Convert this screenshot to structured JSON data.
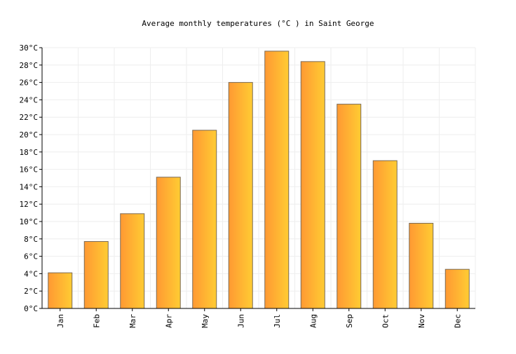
{
  "chart_data": {
    "type": "bar",
    "title": "Average monthly temperatures (°C ) in Saint George",
    "xlabel": "",
    "ylabel": "",
    "categories": [
      "Jan",
      "Feb",
      "Mar",
      "Apr",
      "May",
      "Jun",
      "Jul",
      "Aug",
      "Sep",
      "Oct",
      "Nov",
      "Dec"
    ],
    "values": [
      4.1,
      7.7,
      10.9,
      15.1,
      20.5,
      26.0,
      29.6,
      28.4,
      23.5,
      17.0,
      9.8,
      4.5
    ],
    "ylim": [
      0,
      30
    ],
    "yticks": [
      0,
      2,
      4,
      6,
      8,
      10,
      12,
      14,
      16,
      18,
      20,
      22,
      24,
      26,
      28,
      30
    ],
    "ytick_labels": [
      "0°C",
      "2°C",
      "4°C",
      "6°C",
      "8°C",
      "10°C",
      "12°C",
      "14°C",
      "16°C",
      "18°C",
      "20°C",
      "22°C",
      "24°C",
      "26°C",
      "28°C",
      "30°C"
    ],
    "grid": true,
    "legend": "none",
    "colors": {
      "bar_left": "#ff9933",
      "bar_right": "#ffcc33",
      "bar_stroke": "#7a6a55",
      "grid": "#eeeeee",
      "axis": "#000000"
    }
  }
}
